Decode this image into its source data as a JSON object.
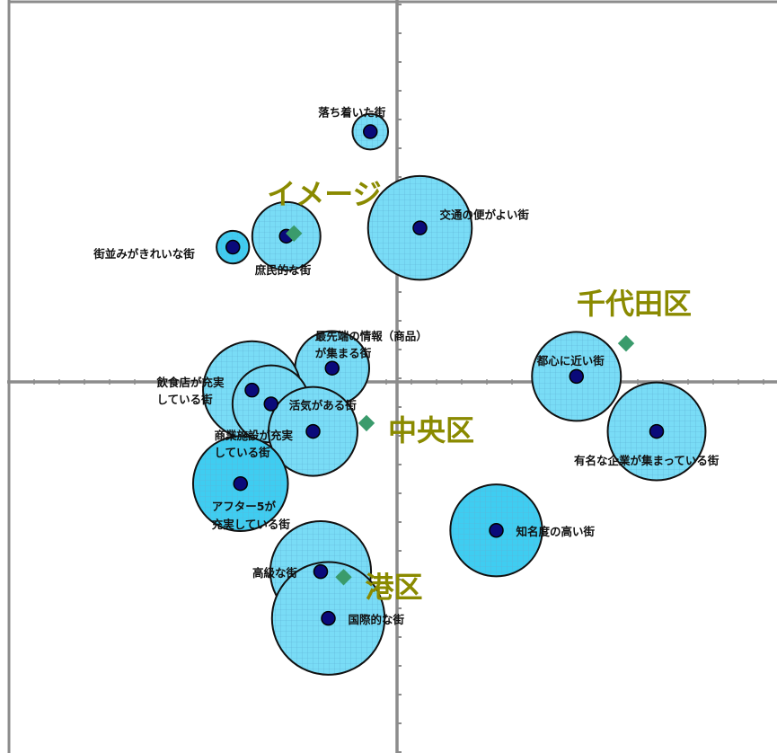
{
  "chart_data": {
    "type": "scatter",
    "grid": false,
    "colors": {
      "bubble_fill": "#79dcf6",
      "bubble_fill_strong": "#3fcdf1",
      "bubble_hatch": "#5fb0d6",
      "bubble_stroke": "#111111",
      "point_fill": "#0a0a7a",
      "ward_marker": "#3a9b6c",
      "ward_label": "#8a8a00",
      "axis": "#8c8c8c"
    },
    "bubbles": [
      {
        "name": "落ち着いた街",
        "x": -0.07,
        "y": 0.91,
        "size": 0.12,
        "style": "light"
      },
      {
        "name": "交通の便がよい街",
        "x": 0.06,
        "y": 0.56,
        "size": 0.35,
        "style": "light"
      },
      {
        "name": "街並みがきれいな街",
        "x": -0.43,
        "y": 0.49,
        "size": 0.11,
        "style": "strong"
      },
      {
        "name": "庶民的な街",
        "x": -0.29,
        "y": 0.53,
        "size": 0.23,
        "style": "light"
      },
      {
        "name": "最先端の情報（商品）が集まる街",
        "x": -0.17,
        "y": 0.05,
        "size": 0.25,
        "style": "light"
      },
      {
        "name": "飲食店が充実している街",
        "x": -0.38,
        "y": -0.03,
        "size": 0.33,
        "style": "light"
      },
      {
        "name": "活気がある街",
        "x": -0.33,
        "y": -0.08,
        "size": 0.26,
        "style": "light"
      },
      {
        "name": "商業施設が充実している街",
        "x": -0.22,
        "y": -0.18,
        "size": 0.3,
        "style": "light"
      },
      {
        "name": "アフター5が充実している街",
        "x": -0.41,
        "y": -0.37,
        "size": 0.32,
        "style": "strong"
      },
      {
        "name": "都心に近い街",
        "x": 0.47,
        "y": 0.02,
        "size": 0.3,
        "style": "light"
      },
      {
        "name": "有名な企業が集まっている街",
        "x": 0.68,
        "y": -0.18,
        "size": 0.33,
        "style": "light"
      },
      {
        "name": "知名度の高い街",
        "x": 0.26,
        "y": -0.54,
        "size": 0.31,
        "style": "strong"
      },
      {
        "name": "高級な街",
        "x": -0.2,
        "y": -0.69,
        "size": 0.34,
        "style": "light"
      },
      {
        "name": "国際的な街",
        "x": -0.18,
        "y": -0.86,
        "size": 0.38,
        "style": "light"
      }
    ],
    "wards": [
      {
        "name": "イメージ",
        "x": -0.27,
        "y": 0.54
      },
      {
        "name": "千代田区",
        "x": 0.6,
        "y": 0.14
      },
      {
        "name": "中央区",
        "x": -0.08,
        "y": -0.15
      },
      {
        "name": "港区",
        "x": -0.14,
        "y": -0.71
      }
    ]
  }
}
